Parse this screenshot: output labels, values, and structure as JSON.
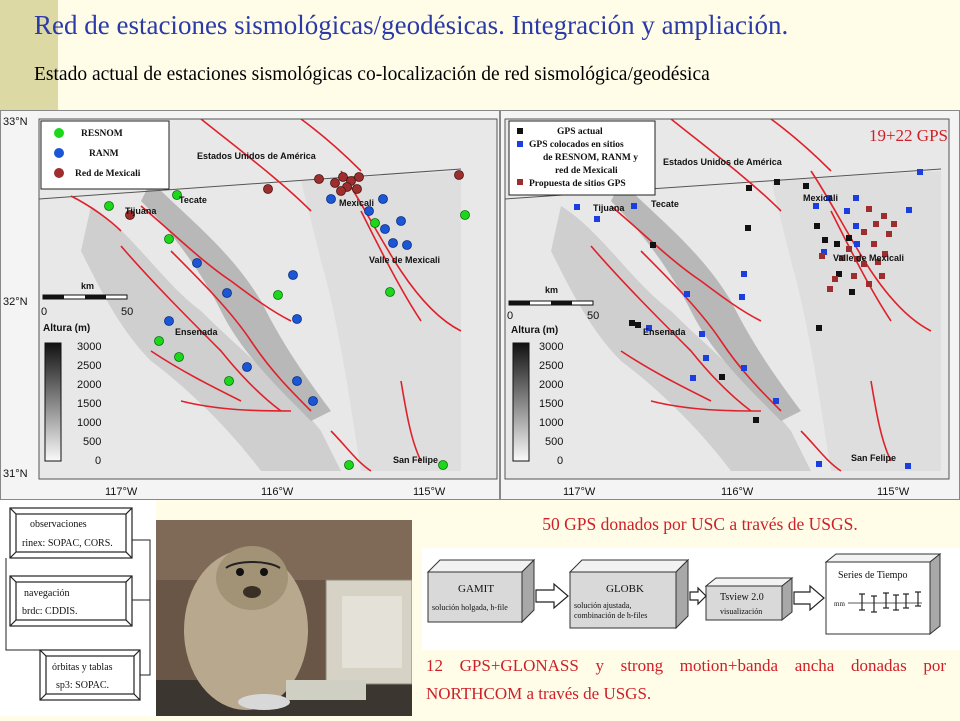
{
  "slide": {
    "title": "Red de estaciones sismológicas/geodésicas. Integración y ampliación.",
    "subtitle": "Estado actual de estaciones sismológicas co-localización de red sismológica/geodésica",
    "gps_count_label": "19+22 GPS",
    "note_usc": "50 GPS donados por USC a través de USGS.",
    "note_northcom": "12 GPS+GLONASS y strong motion+banda ancha donadas por NORTHCOM a través de USGS."
  },
  "colors": {
    "title": "#2a3aa8",
    "notes": "#ce2028",
    "resnom": "#1bd81b",
    "ranm": "#1a56d6",
    "mexicali": "#9e2e2e",
    "gps_actual": "#111111",
    "gps_colocated": "#1a3ee0",
    "gps_proposed": "#9e2e2e",
    "faults": "#e0202a"
  },
  "maps": {
    "lat_labels": [
      "33°N",
      "32°N",
      "31°N"
    ],
    "lon_labels": [
      "117°W",
      "116°W",
      "115°W"
    ],
    "places": {
      "usa": "Estados Unidos de América",
      "tijuana": "Tijuana",
      "tecate": "Tecate",
      "mexicali": "Mexicali",
      "valle": "Valle de Mexicali",
      "ensenada": "Ensenada",
      "san_felipe": "San Felipe"
    },
    "scale": {
      "unit": "km",
      "zero": "0",
      "max": "50"
    },
    "altitude": {
      "title": "Altura (m)",
      "levels": [
        "3000",
        "2500",
        "2000",
        "1500",
        "1000",
        "500",
        "0"
      ]
    },
    "left_legend": [
      "RESNOM",
      "RANM",
      "Red de Mexicali"
    ],
    "right_legend": [
      "GPS actual",
      "GPS colocados en sitios de RESNOM, RANM y red de Mexicali",
      "Propuesta de sitios GPS"
    ],
    "right_legend_lines": [
      "GPS actual",
      "GPS colocados en sitios",
      "de RESNOM, RANM y",
      "red de Mexicali",
      "Propuesta de sitios GPS"
    ]
  },
  "flow_left": {
    "observaciones": "observaciones",
    "rinex": "rinex: SOPAC, CORS.",
    "navegacion": "navegación",
    "brdc": "brdc: CDDIS.",
    "orbitas": "órbitas y tablas",
    "sp3": "sp3: SOPAC."
  },
  "pipeline": {
    "gamit_title": "GAMIT",
    "gamit_sub": "solución holgada, h-file",
    "globk_title": "GLOBK",
    "globk_sub1": "solución ajustada,",
    "globk_sub2": "combinación de h-files",
    "tsview_title": "Tsview 2.0",
    "tsview_sub": "visualización",
    "series_title": "Series de Tiempo",
    "series_axis": "mm"
  }
}
